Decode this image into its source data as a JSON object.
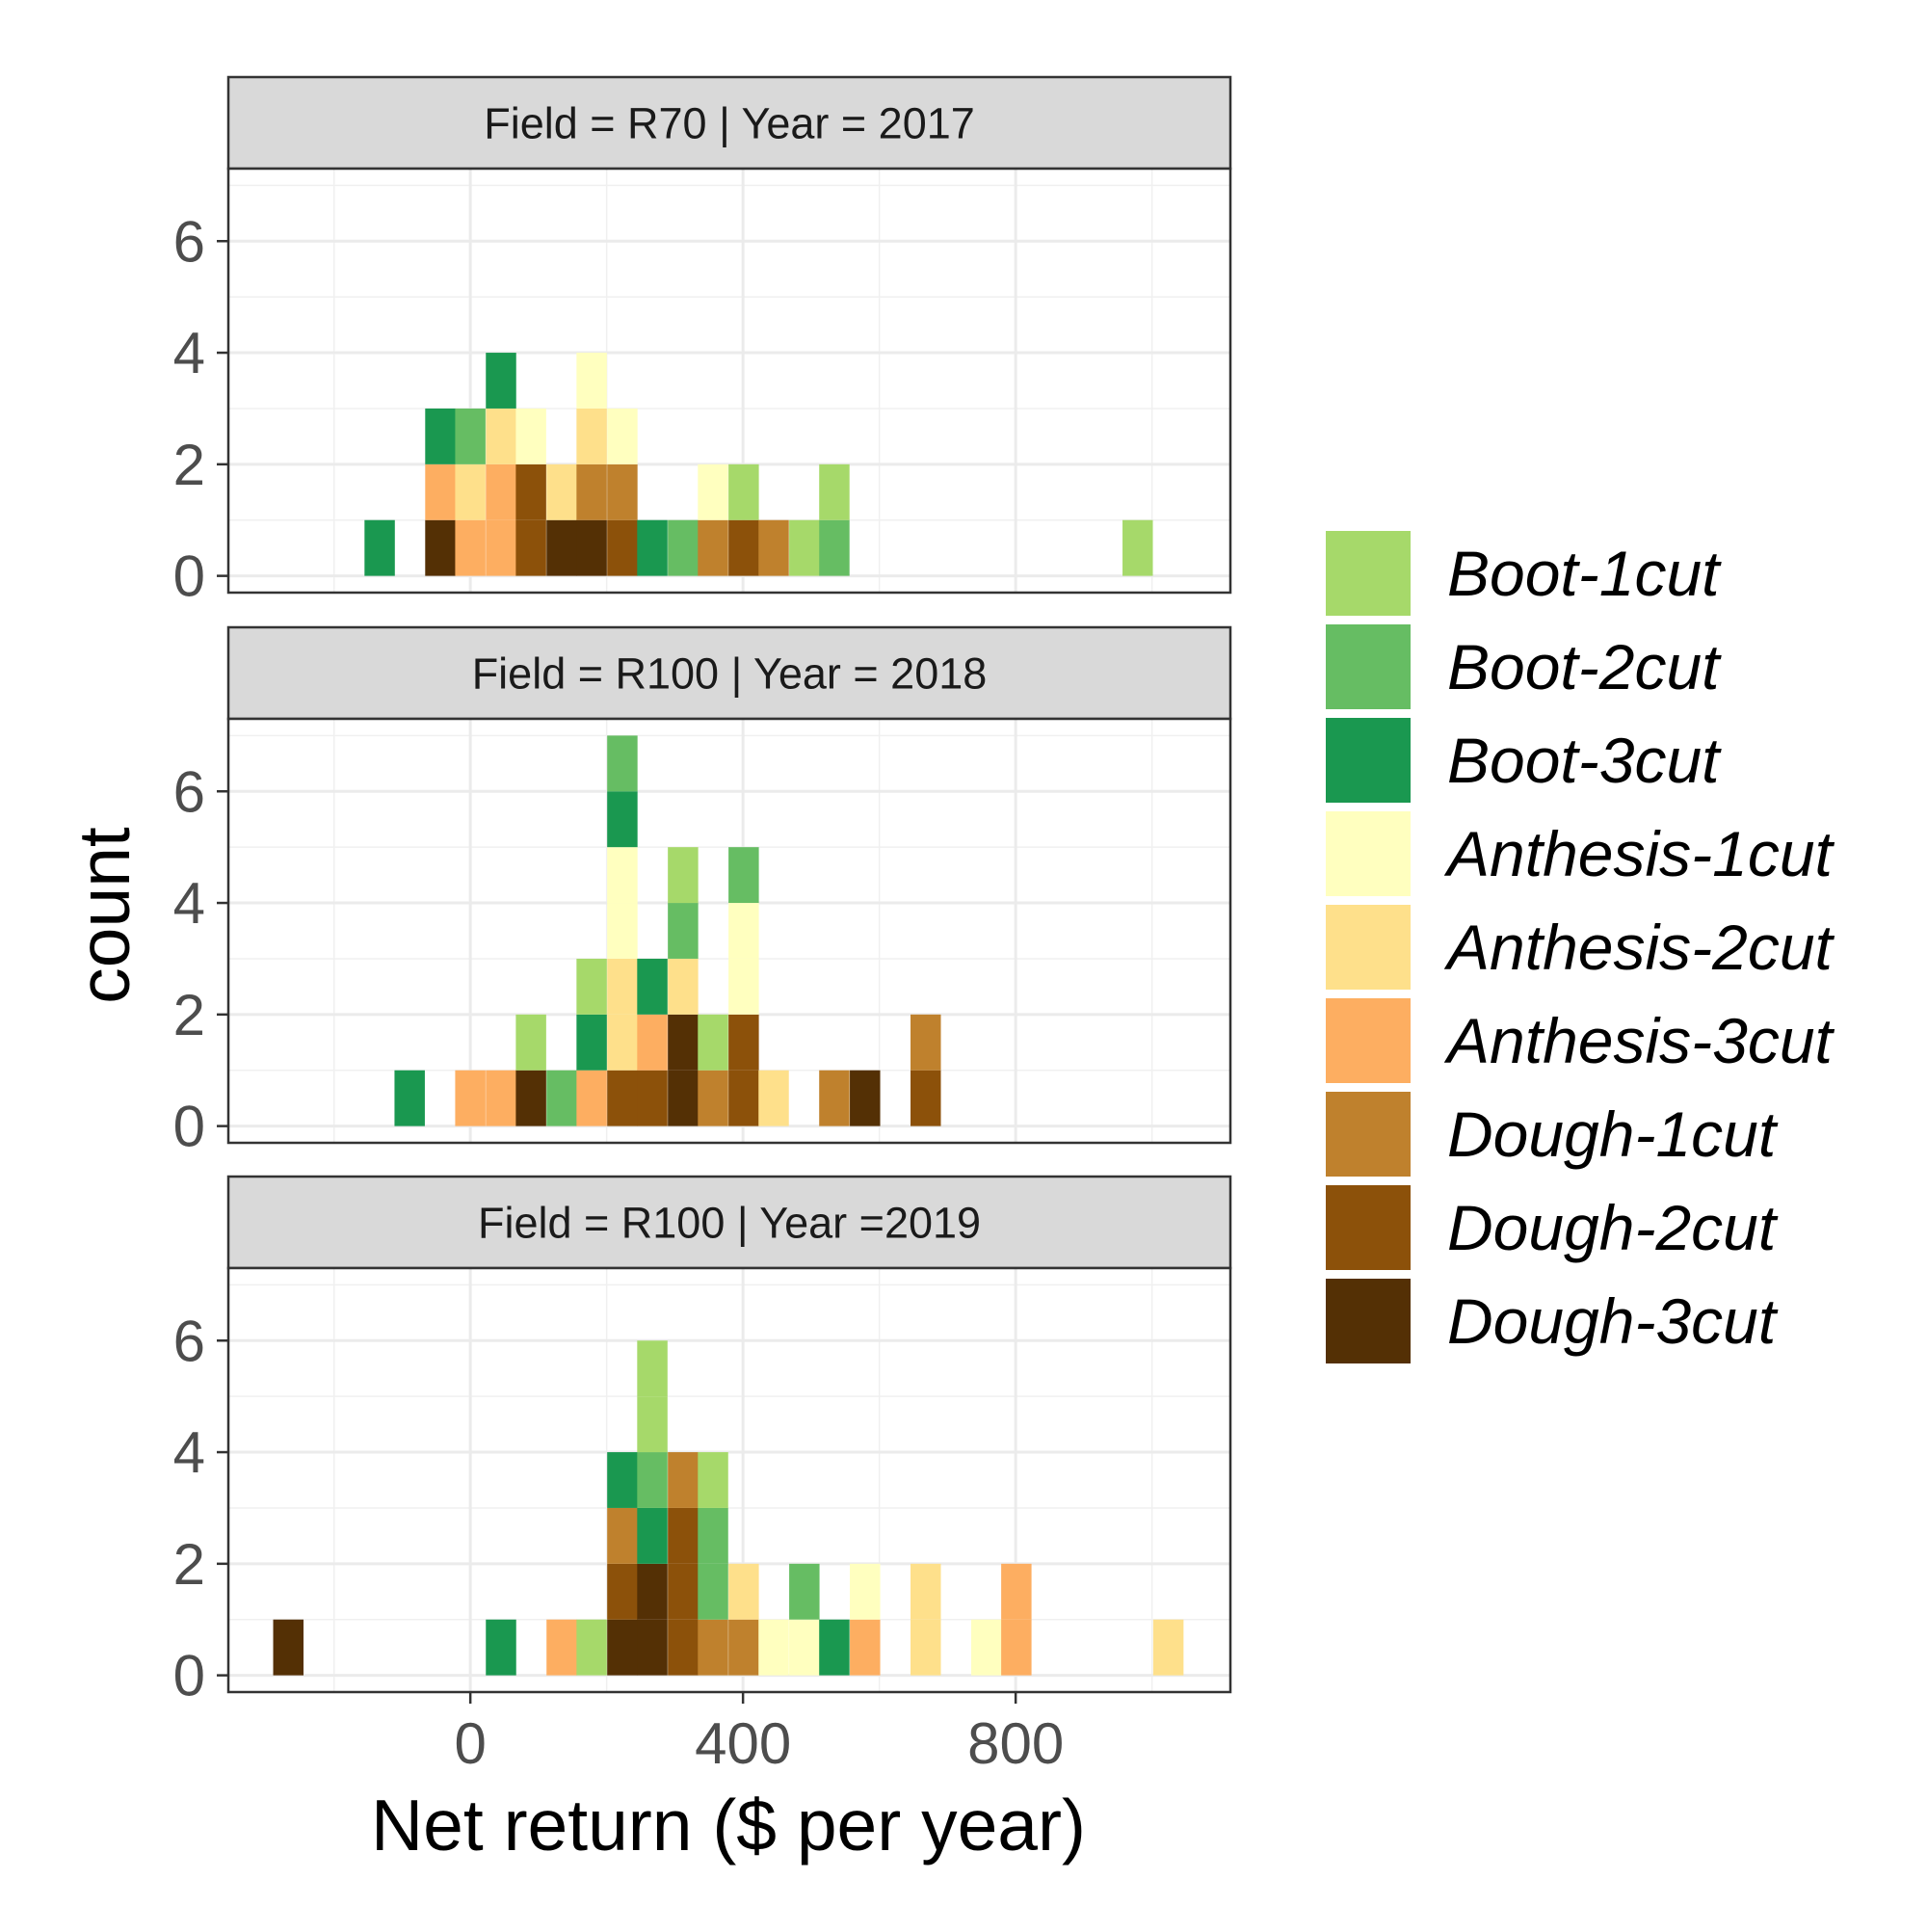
{
  "chart_data": {
    "type": "histogram",
    "title": "",
    "xlabel": "Net return ($ per year)",
    "ylabel": "count",
    "x_ticks": [
      0,
      400,
      800
    ],
    "y_ticks": [
      0,
      2,
      4,
      6
    ],
    "xlim": [
      -355,
      1115
    ],
    "ylim": [
      -0.3,
      7.3
    ],
    "bin_width": 44.5,
    "stacked": true,
    "grid": true,
    "legend_position": "right",
    "legend": [
      {
        "key": "Boot-1cut",
        "label": "Boot-1cut",
        "color": "#a6d96a"
      },
      {
        "key": "Boot-2cut",
        "label": "Boot-2cut",
        "color": "#66bd63"
      },
      {
        "key": "Boot-3cut",
        "label": "Boot-3cut",
        "color": "#1a9850"
      },
      {
        "key": "Anthesis-1cut",
        "label": "Anthesis-1cut",
        "color": "#ffffbf"
      },
      {
        "key": "Anthesis-2cut",
        "label": "Anthesis-2cut",
        "color": "#fee08b"
      },
      {
        "key": "Anthesis-3cut",
        "label": "Anthesis-3cut",
        "color": "#fdae61"
      },
      {
        "key": "Dough-1cut",
        "label": "Dough-1cut",
        "color": "#bf812d"
      },
      {
        "key": "Dough-2cut",
        "label": "Dough-2cut",
        "color": "#8c510a"
      },
      {
        "key": "Dough-3cut",
        "label": "Dough-3cut",
        "color": "#543005"
      }
    ],
    "panels": [
      {
        "strip": "Field = R70  | Year = 2017",
        "bins": [
          {
            "x": -133,
            "stack": [
              [
                "Boot-3cut",
                1
              ]
            ]
          },
          {
            "x": -44,
            "stack": [
              [
                "Dough-3cut",
                1
              ],
              [
                "Anthesis-3cut",
                1
              ],
              [
                "Boot-3cut",
                1
              ]
            ]
          },
          {
            "x": 0,
            "stack": [
              [
                "Anthesis-3cut",
                1
              ],
              [
                "Anthesis-2cut",
                1
              ],
              [
                "Boot-2cut",
                1
              ]
            ]
          },
          {
            "x": 45,
            "stack": [
              [
                "Anthesis-3cut",
                1
              ],
              [
                "Anthesis-3cut",
                1
              ],
              [
                "Anthesis-2cut",
                1
              ],
              [
                "Boot-3cut",
                1
              ]
            ]
          },
          {
            "x": 89,
            "stack": [
              [
                "Dough-2cut",
                1
              ],
              [
                "Dough-2cut",
                1
              ],
              [
                "Anthesis-1cut",
                1
              ]
            ]
          },
          {
            "x": 134,
            "stack": [
              [
                "Dough-3cut",
                1
              ],
              [
                "Anthesis-2cut",
                1
              ]
            ]
          },
          {
            "x": 178,
            "stack": [
              [
                "Dough-3cut",
                1
              ],
              [
                "Dough-1cut",
                1
              ],
              [
                "Anthesis-2cut",
                1
              ],
              [
                "Anthesis-1cut",
                1
              ]
            ]
          },
          {
            "x": 223,
            "stack": [
              [
                "Dough-2cut",
                1
              ],
              [
                "Dough-1cut",
                1
              ],
              [
                "Anthesis-1cut",
                1
              ]
            ]
          },
          {
            "x": 267,
            "stack": [
              [
                "Boot-3cut",
                1
              ]
            ]
          },
          {
            "x": 312,
            "stack": [
              [
                "Boot-2cut",
                1
              ]
            ]
          },
          {
            "x": 356,
            "stack": [
              [
                "Dough-1cut",
                1
              ],
              [
                "Anthesis-1cut",
                1
              ]
            ]
          },
          {
            "x": 401,
            "stack": [
              [
                "Dough-2cut",
                1
              ],
              [
                "Boot-1cut",
                1
              ]
            ]
          },
          {
            "x": 445,
            "stack": [
              [
                "Dough-1cut",
                1
              ]
            ]
          },
          {
            "x": 490,
            "stack": [
              [
                "Boot-1cut",
                1
              ]
            ]
          },
          {
            "x": 534,
            "stack": [
              [
                "Boot-2cut",
                1
              ],
              [
                "Boot-1cut",
                1
              ]
            ]
          },
          {
            "x": 979,
            "stack": [
              [
                "Boot-1cut",
                1
              ]
            ]
          }
        ]
      },
      {
        "strip": "Field = R100 | Year = 2018",
        "bins": [
          {
            "x": -89,
            "stack": [
              [
                "Boot-3cut",
                1
              ]
            ]
          },
          {
            "x": 0,
            "stack": [
              [
                "Anthesis-3cut",
                1
              ]
            ]
          },
          {
            "x": 45,
            "stack": [
              [
                "Anthesis-3cut",
                1
              ]
            ]
          },
          {
            "x": 89,
            "stack": [
              [
                "Dough-3cut",
                1
              ],
              [
                "Boot-1cut",
                1
              ]
            ]
          },
          {
            "x": 134,
            "stack": [
              [
                "Boot-2cut",
                1
              ]
            ]
          },
          {
            "x": 178,
            "stack": [
              [
                "Anthesis-3cut",
                1
              ],
              [
                "Boot-3cut",
                1
              ],
              [
                "Boot-1cut",
                1
              ]
            ]
          },
          {
            "x": 223,
            "stack": [
              [
                "Dough-2cut",
                1
              ],
              [
                "Anthesis-2cut",
                1
              ],
              [
                "Anthesis-2cut",
                1
              ],
              [
                "Anthesis-1cut",
                1
              ],
              [
                "Anthesis-1cut",
                1
              ],
              [
                "Boot-3cut",
                1
              ],
              [
                "Boot-2cut",
                1
              ]
            ]
          },
          {
            "x": 267,
            "stack": [
              [
                "Dough-2cut",
                1
              ],
              [
                "Anthesis-3cut",
                1
              ],
              [
                "Boot-3cut",
                1
              ]
            ]
          },
          {
            "x": 312,
            "stack": [
              [
                "Dough-3cut",
                1
              ],
              [
                "Dough-3cut",
                1
              ],
              [
                "Anthesis-2cut",
                1
              ],
              [
                "Boot-2cut",
                1
              ],
              [
                "Boot-1cut",
                1
              ]
            ]
          },
          {
            "x": 356,
            "stack": [
              [
                "Dough-1cut",
                1
              ],
              [
                "Boot-1cut",
                1
              ]
            ]
          },
          {
            "x": 401,
            "stack": [
              [
                "Dough-2cut",
                1
              ],
              [
                "Dough-2cut",
                1
              ],
              [
                "Anthesis-1cut",
                1
              ],
              [
                "Anthesis-1cut",
                1
              ],
              [
                "Boot-2cut",
                1
              ]
            ]
          },
          {
            "x": 445,
            "stack": [
              [
                "Anthesis-2cut",
                1
              ]
            ]
          },
          {
            "x": 534,
            "stack": [
              [
                "Dough-1cut",
                1
              ]
            ]
          },
          {
            "x": 579,
            "stack": [
              [
                "Dough-3cut",
                1
              ]
            ]
          },
          {
            "x": 668,
            "stack": [
              [
                "Dough-2cut",
                1
              ],
              [
                "Dough-1cut",
                1
              ]
            ]
          }
        ]
      },
      {
        "strip": "Field = R100 | Year =2019",
        "bins": [
          {
            "x": -267,
            "stack": [
              [
                "Dough-3cut",
                1
              ]
            ]
          },
          {
            "x": 45,
            "stack": [
              [
                "Boot-3cut",
                1
              ]
            ]
          },
          {
            "x": 134,
            "stack": [
              [
                "Anthesis-3cut",
                1
              ]
            ]
          },
          {
            "x": 178,
            "stack": [
              [
                "Boot-1cut",
                1
              ]
            ]
          },
          {
            "x": 223,
            "stack": [
              [
                "Dough-3cut",
                1
              ],
              [
                "Dough-2cut",
                1
              ],
              [
                "Dough-1cut",
                1
              ],
              [
                "Boot-3cut",
                1
              ]
            ]
          },
          {
            "x": 267,
            "stack": [
              [
                "Dough-3cut",
                1
              ],
              [
                "Dough-3cut",
                1
              ],
              [
                "Boot-3cut",
                1
              ],
              [
                "Boot-2cut",
                1
              ],
              [
                "Boot-1cut",
                1
              ],
              [
                "Boot-1cut",
                1
              ]
            ]
          },
          {
            "x": 312,
            "stack": [
              [
                "Dough-2cut",
                1
              ],
              [
                "Dough-2cut",
                1
              ],
              [
                "Dough-2cut",
                1
              ],
              [
                "Dough-1cut",
                1
              ]
            ]
          },
          {
            "x": 356,
            "stack": [
              [
                "Dough-1cut",
                1
              ],
              [
                "Boot-2cut",
                1
              ],
              [
                "Boot-2cut",
                1
              ],
              [
                "Boot-1cut",
                1
              ]
            ]
          },
          {
            "x": 401,
            "stack": [
              [
                "Dough-1cut",
                1
              ],
              [
                "Anthesis-2cut",
                1
              ]
            ]
          },
          {
            "x": 445,
            "stack": [
              [
                "Anthesis-1cut",
                1
              ]
            ]
          },
          {
            "x": 490,
            "stack": [
              [
                "Anthesis-1cut",
                1
              ],
              [
                "Boot-2cut",
                1
              ]
            ]
          },
          {
            "x": 534,
            "stack": [
              [
                "Boot-3cut",
                1
              ]
            ]
          },
          {
            "x": 579,
            "stack": [
              [
                "Anthesis-3cut",
                1
              ],
              [
                "Anthesis-1cut",
                1
              ]
            ]
          },
          {
            "x": 668,
            "stack": [
              [
                "Anthesis-2cut",
                1
              ],
              [
                "Anthesis-2cut",
                1
              ]
            ]
          },
          {
            "x": 757,
            "stack": [
              [
                "Anthesis-1cut",
                1
              ]
            ]
          },
          {
            "x": 801,
            "stack": [
              [
                "Anthesis-3cut",
                1
              ],
              [
                "Anthesis-3cut",
                1
              ]
            ]
          },
          {
            "x": 1024,
            "stack": [
              [
                "Anthesis-2cut",
                1
              ]
            ]
          }
        ]
      }
    ]
  }
}
